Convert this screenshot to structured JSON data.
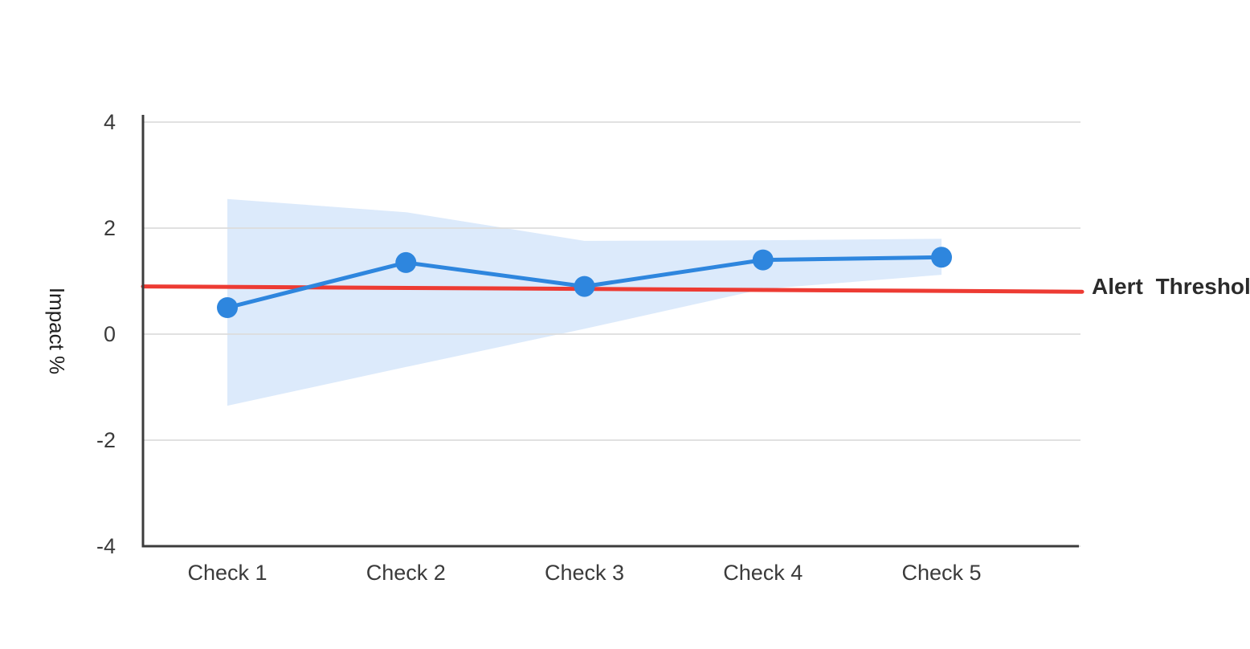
{
  "page": {
    "background": "#ffffff"
  },
  "chart_data": {
    "type": "line",
    "title": "",
    "xlabel": "",
    "ylabel": "Impact %",
    "categories": [
      "Check 1",
      "Check 2",
      "Check 3",
      "Check 4",
      "Check 5"
    ],
    "series": [
      {
        "name": "Impact %",
        "color": "#2e86de",
        "values": [
          0.5,
          1.35,
          0.9,
          1.4,
          1.45
        ],
        "marker": "circle"
      }
    ],
    "confidence_band": {
      "color": "#dceafb",
      "upper": [
        2.55,
        2.3,
        1.76,
        1.77,
        1.8
      ],
      "lower": [
        -1.35,
        -0.62,
        0.1,
        0.85,
        1.12
      ]
    },
    "threshold": {
      "label": "Alert Threshold",
      "color": "#ed3b33",
      "start_value": 0.9,
      "end_value": 0.8
    },
    "yticks": [
      "4",
      "2",
      "0",
      "-2",
      "-4"
    ],
    "ytick_values": [
      4,
      2,
      0,
      -2,
      -4
    ],
    "ylim": [
      -4,
      4
    ],
    "grid": "horizontal",
    "legend_position": "none"
  },
  "colors": {
    "axis": "#3c3c3c",
    "grid": "#dddddd",
    "tick_text": "#3b3b3b",
    "annotation_text": "#2b2b2b"
  }
}
